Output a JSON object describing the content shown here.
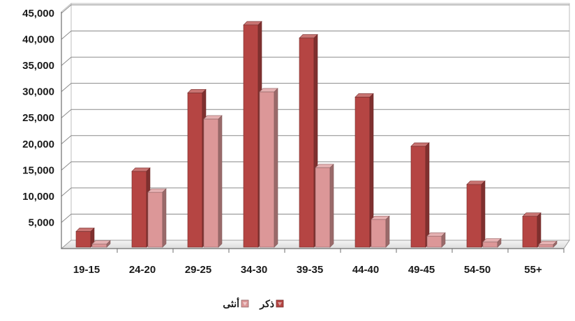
{
  "chart_data": {
    "type": "bar",
    "title": "",
    "xlabel": "",
    "ylabel": "",
    "categories": [
      "19-15",
      "24-20",
      "29-25",
      "34-30",
      "39-35",
      "44-40",
      "49-45",
      "54-50",
      "55+"
    ],
    "series": [
      {
        "name": "ذكر",
        "color": "#b54543",
        "values": [
          3000,
          14500,
          29500,
          42500,
          40000,
          28700,
          19300,
          12000,
          5900
        ]
      },
      {
        "name": "أنثى",
        "color": "#dc9798",
        "values": [
          600,
          10500,
          24500,
          29700,
          15200,
          5300,
          2100,
          1000,
          500
        ]
      }
    ],
    "ylim": [
      0,
      45000
    ],
    "yticks": [
      "5,000",
      "10,000",
      "15,000",
      "20,000",
      "25,000",
      "30,000",
      "35,000",
      "40,000",
      "45,000"
    ],
    "grid": true,
    "legend_position": "bottom",
    "style": "3d-clustered-columns"
  }
}
